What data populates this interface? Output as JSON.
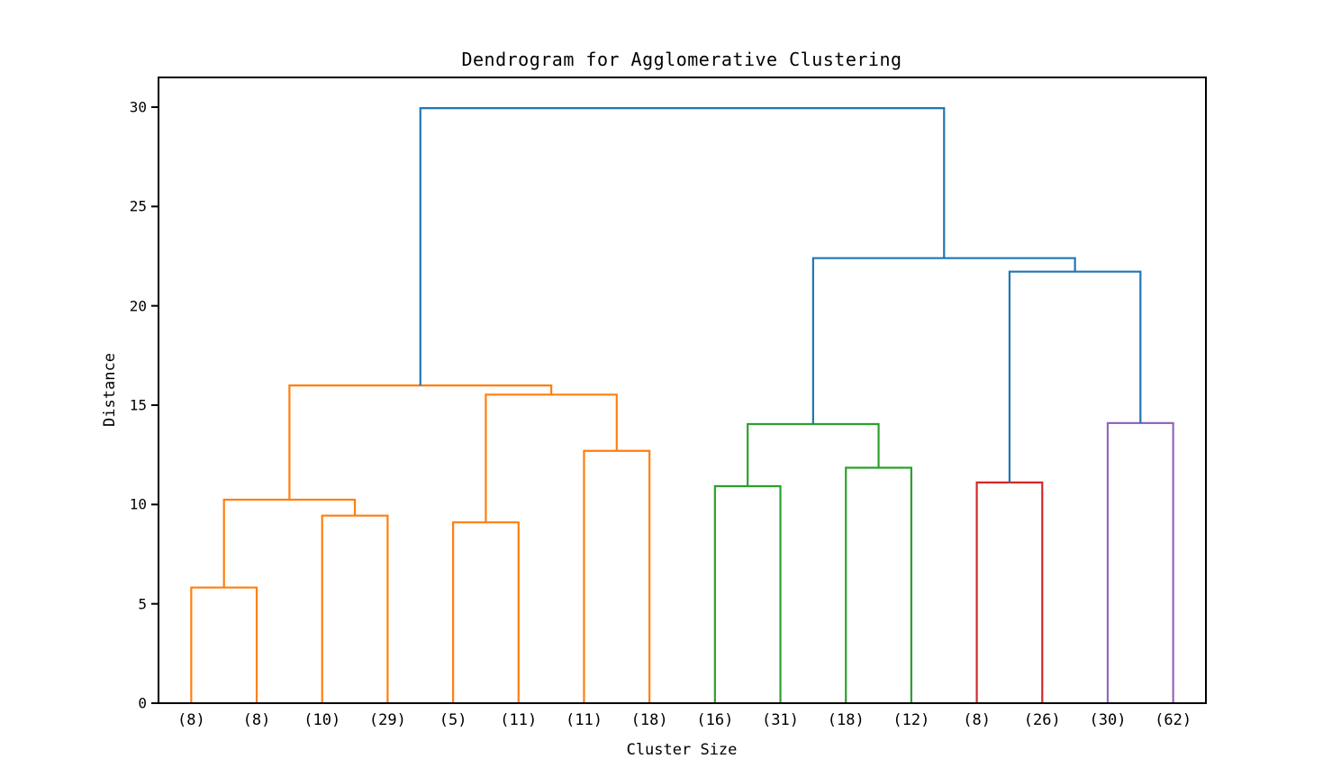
{
  "figure": {
    "background": "#ffffff",
    "spine_color": "#000000"
  },
  "chart_data": {
    "type": "dendrogram",
    "title": "Dendrogram for Agglomerative Clustering",
    "xlabel": "Cluster Size",
    "ylabel": "Distance",
    "ylim": [
      0,
      31.5
    ],
    "yticks": [
      0,
      5,
      10,
      15,
      20,
      25,
      30
    ],
    "grid": false,
    "legend": "none",
    "palette": {
      "blue": "#1f77b4",
      "orange": "#ff7f0e",
      "green": "#2ca02c",
      "red": "#d62728",
      "purple": "#9467bd"
    },
    "leaves": [
      {
        "label": "(8)",
        "color": "#ff7f0e"
      },
      {
        "label": "(8)",
        "color": "#ff7f0e"
      },
      {
        "label": "(10)",
        "color": "#ff7f0e"
      },
      {
        "label": "(29)",
        "color": "#ff7f0e"
      },
      {
        "label": "(5)",
        "color": "#ff7f0e"
      },
      {
        "label": "(11)",
        "color": "#ff7f0e"
      },
      {
        "label": "(11)",
        "color": "#ff7f0e"
      },
      {
        "label": "(18)",
        "color": "#ff7f0e"
      },
      {
        "label": "(16)",
        "color": "#2ca02c"
      },
      {
        "label": "(31)",
        "color": "#2ca02c"
      },
      {
        "label": "(18)",
        "color": "#2ca02c"
      },
      {
        "label": "(12)",
        "color": "#2ca02c"
      },
      {
        "label": "(8)",
        "color": "#d62728"
      },
      {
        "label": "(26)",
        "color": "#d62728"
      },
      {
        "label": "(30)",
        "color": "#9467bd"
      },
      {
        "label": "(62)",
        "color": "#9467bd"
      }
    ],
    "links": [
      {
        "id": "O1",
        "children": [
          "L0",
          "L1"
        ],
        "height": 5.82,
        "color": "#ff7f0e"
      },
      {
        "id": "O2",
        "children": [
          "L2",
          "L3"
        ],
        "height": 9.44,
        "color": "#ff7f0e"
      },
      {
        "id": "O3",
        "children": [
          "O1",
          "O2"
        ],
        "height": 10.24,
        "color": "#ff7f0e"
      },
      {
        "id": "O4",
        "children": [
          "L4",
          "L5"
        ],
        "height": 9.1,
        "color": "#ff7f0e"
      },
      {
        "id": "O5",
        "children": [
          "L6",
          "L7"
        ],
        "height": 12.7,
        "color": "#ff7f0e"
      },
      {
        "id": "O6",
        "children": [
          "O4",
          "O5"
        ],
        "height": 15.53,
        "color": "#ff7f0e"
      },
      {
        "id": "O7",
        "children": [
          "O3",
          "O6"
        ],
        "height": 15.99,
        "color": "#ff7f0e"
      },
      {
        "id": "G1",
        "children": [
          "L8",
          "L9"
        ],
        "height": 10.92,
        "color": "#2ca02c"
      },
      {
        "id": "G2",
        "children": [
          "L10",
          "L11"
        ],
        "height": 11.85,
        "color": "#2ca02c"
      },
      {
        "id": "G3",
        "children": [
          "G1",
          "G2"
        ],
        "height": 14.05,
        "color": "#2ca02c"
      },
      {
        "id": "R1",
        "children": [
          "L12",
          "L13"
        ],
        "height": 11.11,
        "color": "#d62728"
      },
      {
        "id": "P1",
        "children": [
          "L14",
          "L15"
        ],
        "height": 14.1,
        "color": "#9467bd"
      },
      {
        "id": "B1",
        "children": [
          "R1",
          "P1"
        ],
        "height": 21.72,
        "color": "#1f77b4"
      },
      {
        "id": "B2",
        "children": [
          "G3",
          "B1"
        ],
        "height": 22.4,
        "color": "#1f77b4"
      },
      {
        "id": "ROOT",
        "children": [
          "O7",
          "B2"
        ],
        "height": 29.95,
        "color": "#1f77b4"
      }
    ]
  }
}
